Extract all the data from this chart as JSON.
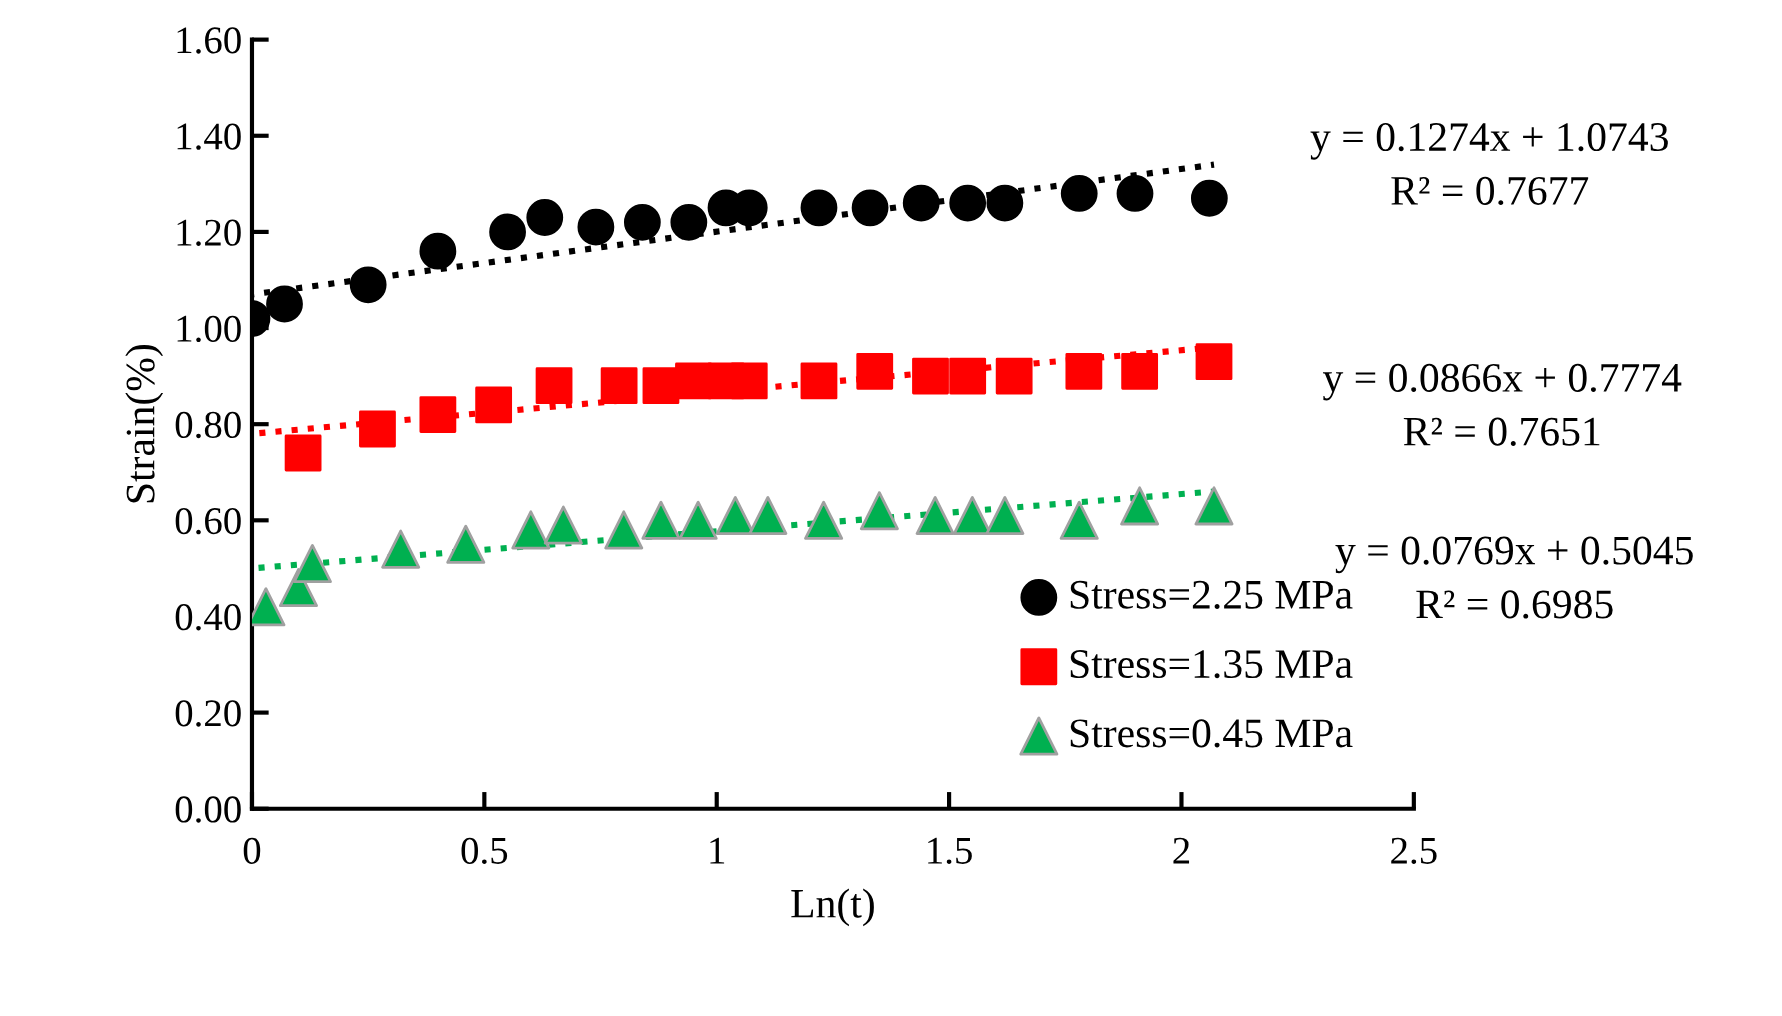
{
  "chart_data": {
    "type": "scatter",
    "xlabel": "Ln(t)",
    "ylabel": "Strain(%)",
    "xlim": [
      0,
      2.5
    ],
    "xticks": [
      0,
      0.5,
      1,
      1.5,
      2,
      2.5
    ],
    "ylim": [
      0,
      1.6
    ],
    "yticks": [
      {
        "value": 0,
        "label": "0.00"
      },
      {
        "value": 0.2,
        "label": "0.20"
      },
      {
        "value": 0.4,
        "label": "0.40"
      },
      {
        "value": 0.6,
        "label": "0.60"
      },
      {
        "value": 0.8,
        "label": "0.80"
      },
      {
        "value": 1.0,
        "label": "1.00"
      },
      {
        "value": 1.2,
        "label": "1.20"
      },
      {
        "value": 1.4,
        "label": "1.40"
      },
      {
        "value": 1.6,
        "label": "1.60"
      }
    ],
    "grid": false,
    "legend": "bottom right",
    "series": [
      {
        "name": "Stress=2.25 MPa",
        "color": "#000000",
        "marker": "circle",
        "x": [
          0.0,
          0.07,
          0.25,
          0.4,
          0.55,
          0.63,
          0.74,
          0.84,
          0.94,
          1.02,
          1.07,
          1.22,
          1.33,
          1.44,
          1.54,
          1.62,
          1.78,
          1.9,
          2.06
        ],
        "values": [
          1.02,
          1.05,
          1.09,
          1.16,
          1.2,
          1.23,
          1.21,
          1.22,
          1.22,
          1.25,
          1.25,
          1.25,
          1.25,
          1.26,
          1.26,
          1.26,
          1.28,
          1.28,
          1.27
        ]
      },
      {
        "name": "Stress=1.35 MPa",
        "color": "#ff0000",
        "marker": "square",
        "x": [
          0.11,
          0.27,
          0.4,
          0.52,
          0.65,
          0.79,
          0.88,
          0.95,
          1.02,
          1.07,
          1.22,
          1.34,
          1.46,
          1.54,
          1.64,
          1.79,
          1.91,
          2.07
        ],
        "values": [
          0.74,
          0.79,
          0.82,
          0.84,
          0.88,
          0.88,
          0.88,
          0.89,
          0.89,
          0.89,
          0.89,
          0.91,
          0.9,
          0.9,
          0.9,
          0.91,
          0.91,
          0.93
        ]
      },
      {
        "name": "Stress=0.45 MPa",
        "color": "#00b050",
        "marker": "triangle",
        "x": [
          0.03,
          0.1,
          0.13,
          0.32,
          0.46,
          0.6,
          0.67,
          0.8,
          0.88,
          0.96,
          1.04,
          1.11,
          1.23,
          1.35,
          1.47,
          1.55,
          1.62,
          1.78,
          1.91,
          2.07
        ],
        "values": [
          0.42,
          0.46,
          0.51,
          0.54,
          0.55,
          0.58,
          0.59,
          0.58,
          0.6,
          0.6,
          0.61,
          0.61,
          0.6,
          0.62,
          0.61,
          0.61,
          0.61,
          0.6,
          0.63,
          0.63
        ]
      },
      {
        "type": "line",
        "color": "#000000",
        "line_style": "dotted",
        "marker": "none",
        "x": [
          0.0,
          2.07
        ],
        "values": [
          1.07,
          1.34
        ]
      },
      {
        "type": "line",
        "color": "#ff0000",
        "line_style": "dotted",
        "marker": "none",
        "x": [
          0.0,
          2.07
        ],
        "values": [
          0.78,
          0.96
        ]
      },
      {
        "type": "line",
        "color": "#00b050",
        "line_style": "dotted",
        "marker": "none",
        "x": [
          0.0,
          2.07
        ],
        "values": [
          0.5,
          0.66
        ]
      }
    ],
    "annotations": [
      "y = 0.1274x + 1.0743\nR² = 0.7677",
      "y = 0.0866x + 0.7774\nR² = 0.7651",
      "y = 0.0769x + 0.5045\nR² = 0.6985"
    ]
  }
}
